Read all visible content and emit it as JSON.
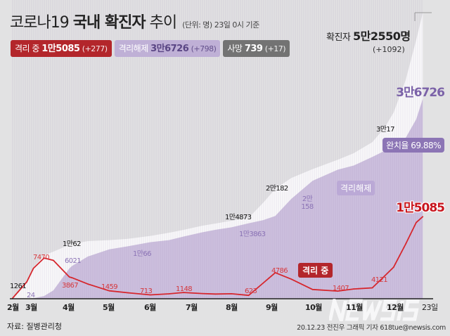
{
  "header": {
    "title_plain": "코로나19 ",
    "title_bold": "국내 확진자",
    "title_tail": " 추이",
    "unit": "(단위: 명) 23일 0시 기준"
  },
  "legend": {
    "isolated": {
      "label": "격리 중",
      "value": "1만5085",
      "delta": "(+277)",
      "color": "#b3262b"
    },
    "released": {
      "label": "격리해제",
      "value": "3만6726",
      "delta": "(+798)",
      "color": "#bfb0d6"
    },
    "deaths": {
      "label": "사망",
      "value": "739",
      "delta": "(+17)",
      "color": "#737373"
    }
  },
  "total": {
    "label": "확진자",
    "value": "5만2550명",
    "delta": "(+1092)"
  },
  "chart_data": {
    "type": "area",
    "x": [
      "02-18",
      "02-29",
      "03-05",
      "03-13",
      "03-20",
      "04-01",
      "04-03",
      "04-15",
      "05-01",
      "05-15",
      "06-01",
      "06-15",
      "06-26",
      "07-10",
      "07-20",
      "08-01",
      "08-14",
      "08-25",
      "09-03",
      "09-15",
      "10-01",
      "10-20",
      "11-01",
      "11-15",
      "11-24",
      "12-01",
      "12-10",
      "12-18",
      "12-23"
    ],
    "series": [
      {
        "name": "확진자",
        "color": "#fafafa",
        "values": [
          31,
          3150,
          5766,
          7979,
          8652,
          9887,
          10062,
          10591,
          10774,
          11018,
          11541,
          12121,
          12653,
          13417,
          13816,
          14336,
          14873,
          17665,
          20182,
          22176,
          23812,
          25543,
          26732,
          28769,
          31353,
          34201,
          40098,
          47515,
          52550
        ]
      },
      {
        "name": "격리해제",
        "color": "#cdc0de",
        "values": [
          16,
          24,
          88,
          510,
          1540,
          5567,
          6021,
          7757,
          9072,
          9631,
          10398,
          10762,
          11422,
          12204,
          12669,
          13116,
          13863,
          14445,
          15198,
          18333,
          21666,
          23700,
          24470,
          26049,
          27124,
          27976,
          29512,
          32947,
          36726
        ]
      },
      {
        "name": "격리 중",
        "color": "#d6262d",
        "values": [
          15,
          3100,
          5600,
          7470,
          7050,
          4000,
          3867,
          2700,
          1459,
          1100,
          713,
          900,
          1148,
          950,
          870,
          923,
          623,
          2900,
          4786,
          3600,
          1700,
          1407,
          1800,
          2000,
          4121,
          5800,
          10000,
          14000,
          15085
        ]
      }
    ],
    "xticks": [
      "2월",
      "3월",
      "4월",
      "5월",
      "6월",
      "7월",
      "8월",
      "9월",
      "10월",
      "11월",
      "12월",
      "23일"
    ],
    "annotations": {
      "confirmed": [
        "1261",
        "1만62",
        "1만4873",
        "2만182",
        "3만17"
      ],
      "released": [
        "24",
        "6021",
        "1만66",
        "1만3863",
        "2만 158",
        "3만6726"
      ],
      "isolated": [
        "7470",
        "3867",
        "1459",
        "713",
        "1148",
        "623",
        "4786",
        "1407",
        "4121",
        "1만5085"
      ]
    },
    "recovery_rate_label": "완치율 69.88%",
    "released_tag": "격리해제",
    "isolated_tag": "격리 중"
  },
  "footer": {
    "source": "자료: 질병관리청",
    "credit": "20.12.23 전진우 그래픽 기자 618tue@newsis.com",
    "logo": "NEWSIS"
  }
}
